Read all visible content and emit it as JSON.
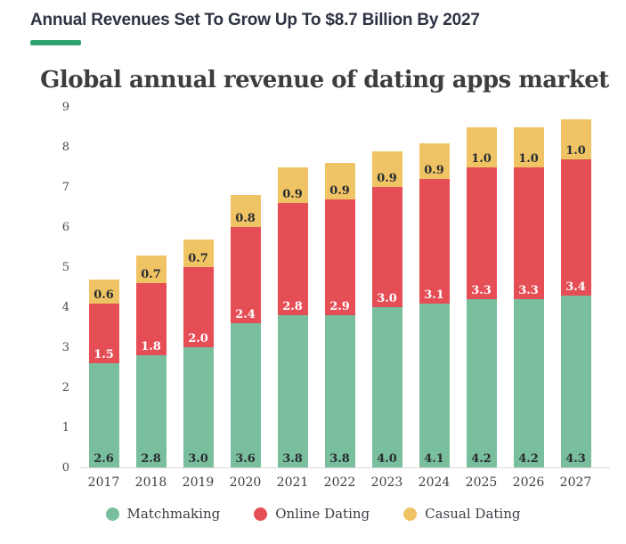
{
  "header": {
    "headline": "Annual Revenues Set To Grow Up To $8.7 Billion By 2027",
    "accent_color": "#2fa36c"
  },
  "chart": {
    "title": "Global annual revenue of dating apps market"
  },
  "chart_data": {
    "type": "bar",
    "stacked": true,
    "title": "Global annual revenue of dating apps market",
    "unit": "billion USD",
    "categories": [
      "2017",
      "2018",
      "2019",
      "2020",
      "2021",
      "2022",
      "2023",
      "2024",
      "2025",
      "2026",
      "2027"
    ],
    "series": [
      {
        "name": "Matchmaking",
        "color": "#7abf9d",
        "label_color": "#272d33",
        "values": [
          2.6,
          2.8,
          3.0,
          3.6,
          3.8,
          3.8,
          4.0,
          4.1,
          4.2,
          4.2,
          4.3
        ]
      },
      {
        "name": "Online Dating",
        "color": "#e64e56",
        "label_color": "#ffffff",
        "values": [
          1.5,
          1.8,
          2.0,
          2.4,
          2.8,
          2.9,
          3.0,
          3.1,
          3.3,
          3.3,
          3.4
        ]
      },
      {
        "name": "Casual Dating",
        "color": "#f0c464",
        "label_color": "#272d33",
        "values": [
          0.6,
          0.7,
          0.7,
          0.8,
          0.9,
          0.9,
          0.9,
          0.9,
          1.0,
          1.0,
          1.0
        ]
      }
    ],
    "ylim": [
      0,
      9
    ],
    "yticks": [
      0,
      1,
      2,
      3,
      4,
      5,
      6,
      7,
      8,
      9
    ],
    "grid": false,
    "legend_position": "bottom",
    "legend": [
      "Matchmaking",
      "Online Dating",
      "Casual Dating"
    ]
  }
}
